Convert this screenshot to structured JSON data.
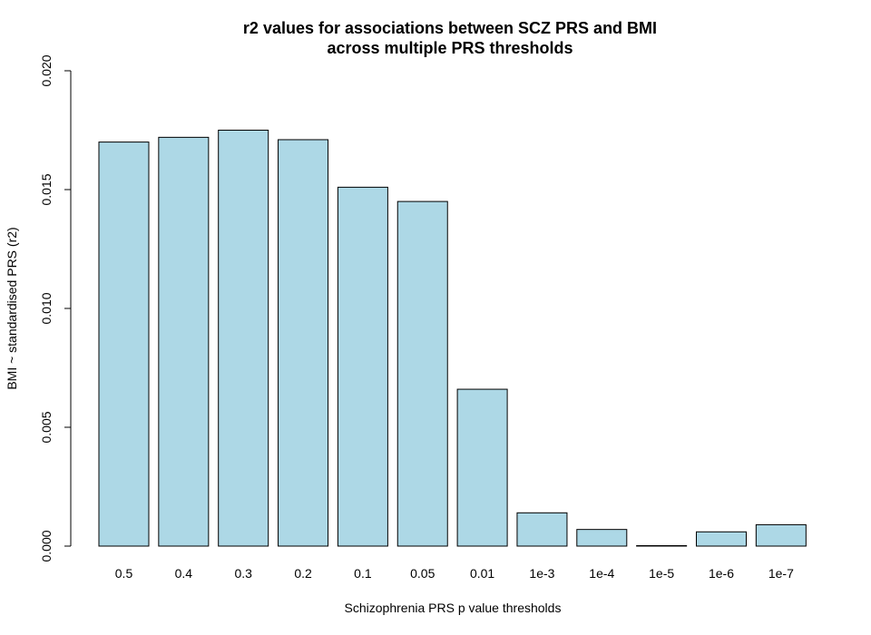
{
  "chart_data": {
    "type": "bar",
    "title": "r2 values for associations between SCZ PRS and BMI",
    "subtitle": "across multiple PRS thresholds",
    "xlabel": "Schizophrenia PRS p value thresholds",
    "ylabel": "BMI ~ standardised PRS (r2)",
    "categories": [
      "0.5",
      "0.4",
      "0.3",
      "0.2",
      "0.1",
      "0.05",
      "0.01",
      "1e-3",
      "1e-4",
      "1e-5",
      "1e-6",
      "1e-7"
    ],
    "values": [
      0.017,
      0.0172,
      0.0175,
      0.0171,
      0.0151,
      0.0145,
      0.0066,
      0.0014,
      0.0007,
      0.0,
      0.0006,
      0.0009
    ],
    "ylim": [
      0,
      0.02
    ],
    "yticks": [
      "0.000",
      "0.005",
      "0.010",
      "0.015",
      "0.020"
    ],
    "ytick_values": [
      0,
      0.005,
      0.01,
      0.015,
      0.02
    ],
    "grid": false,
    "bar_color": "#add8e6",
    "border_color": "#000000"
  }
}
